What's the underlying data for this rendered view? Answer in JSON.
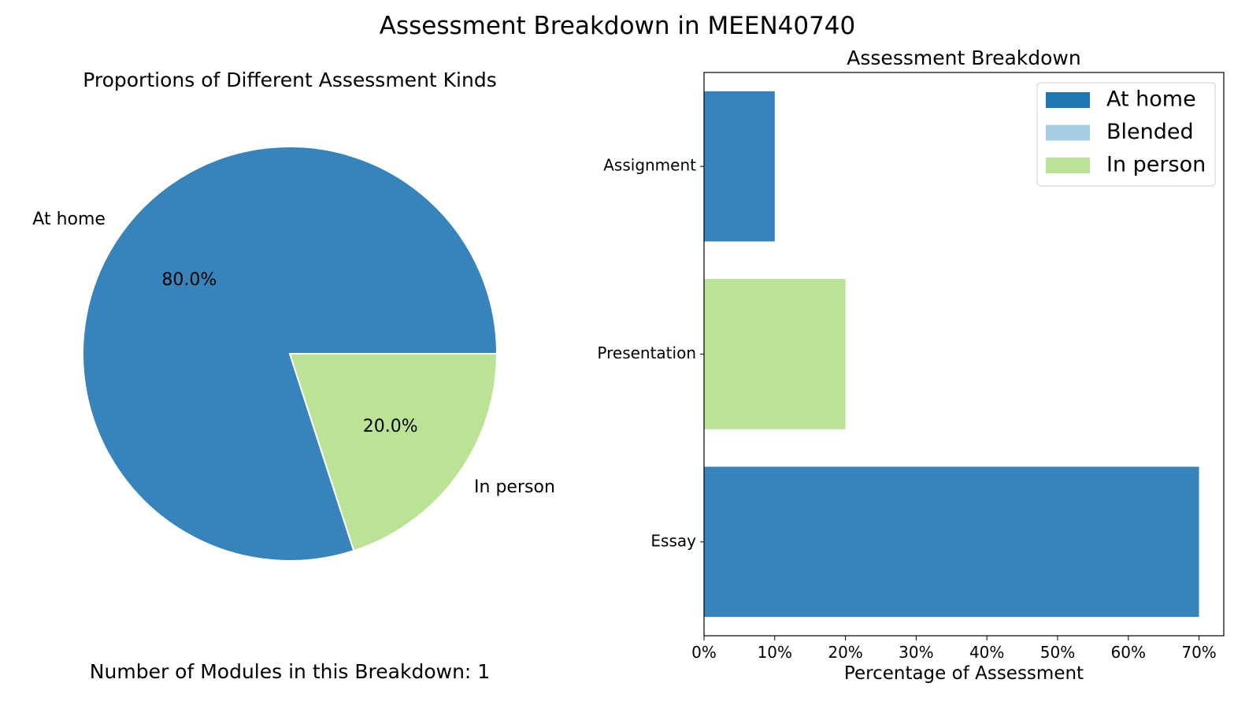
{
  "figure": {
    "suptitle": "Assessment Breakdown in MEEN40740",
    "footnote": "Number of Modules in this Breakdown: 1"
  },
  "colors": {
    "at_home": "#3684BB",
    "blended": "#A6CEE3",
    "in_person": "#BBE395",
    "legend_at_home": "#1F77B4"
  },
  "chart_data": [
    {
      "type": "pie",
      "title": "Proportions of Different Assessment Kinds",
      "slices": [
        {
          "label": "At home",
          "value": 80.0,
          "pct_label": "80.0%",
          "color": "#3684BB"
        },
        {
          "label": "In person",
          "value": 20.0,
          "pct_label": "20.0%",
          "color": "#BBE395"
        }
      ]
    },
    {
      "type": "bar",
      "orientation": "horizontal",
      "title": "Assessment Breakdown",
      "xlabel": "Percentage of Assessment",
      "ylabel": "",
      "xlim": [
        0,
        73.5
      ],
      "xticks": [
        0,
        10,
        20,
        30,
        40,
        50,
        60,
        70
      ],
      "xtick_labels": [
        "0%",
        "10%",
        "20%",
        "30%",
        "40%",
        "50%",
        "60%",
        "70%"
      ],
      "categories": [
        "Assignment",
        "Presentation",
        "Essay"
      ],
      "bars": [
        {
          "category": "Assignment",
          "value": 10,
          "kind": "At home"
        },
        {
          "category": "Presentation",
          "value": 20,
          "kind": "In person"
        },
        {
          "category": "Essay",
          "value": 70,
          "kind": "At home"
        }
      ],
      "legend": {
        "position": "top-right",
        "entries": [
          {
            "label": "At home",
            "color": "#1F77B4"
          },
          {
            "label": "Blended",
            "color": "#A6CEE3"
          },
          {
            "label": "In person",
            "color": "#BBE395"
          }
        ]
      },
      "grid": false
    }
  ]
}
